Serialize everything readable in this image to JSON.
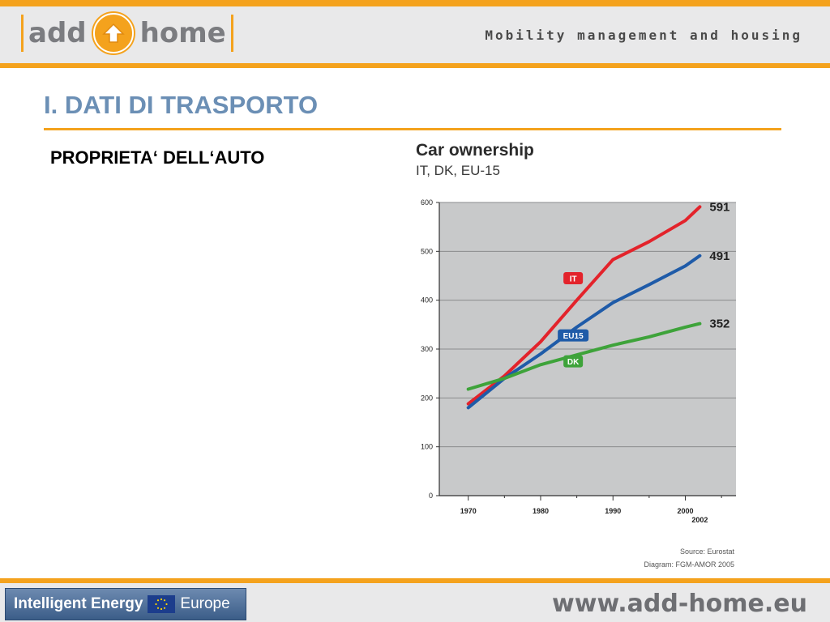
{
  "header": {
    "logo_left": "add",
    "logo_right": "home",
    "tagline": "Mobility management and housing"
  },
  "slide": {
    "title": "I. DATI DI TRASPORTO",
    "subtitle": "PROPRIETA‘ DELL‘AUTO"
  },
  "footer": {
    "program_text": "Intelligent Energy",
    "program_europe": "Europe",
    "website": "www.add-home.eu"
  },
  "colors": {
    "accent": "#f4a21d",
    "title": "#6b8fb5",
    "IT": "#e3232b",
    "EU15": "#1f5ba8",
    "DK": "#3ea33a",
    "plot_bg": "#c8c9ca"
  },
  "chart_data": {
    "type": "line",
    "title": "Car ownership",
    "subtitle": "IT, DK, EU-15",
    "xlabel": "",
    "ylabel": "",
    "xlim": [
      1966,
      2007
    ],
    "ylim": [
      0,
      600
    ],
    "x_ticks": [
      "1970",
      "1980",
      "1990",
      "2000"
    ],
    "x_extra_label": "2002",
    "y_ticks": [
      "0",
      "100",
      "200",
      "300",
      "400",
      "500",
      "600"
    ],
    "grid": true,
    "series": [
      {
        "name": "IT",
        "color": "#e3232b",
        "end_label": "591",
        "x": [
          1970,
          1975,
          1980,
          1985,
          1990,
          1995,
          2000,
          2002
        ],
        "y": [
          188,
          245,
          315,
          400,
          483,
          520,
          563,
          591
        ]
      },
      {
        "name": "EU15",
        "color": "#1f5ba8",
        "end_label": "491",
        "x": [
          1970,
          1975,
          1980,
          1985,
          1990,
          1995,
          2000,
          2002
        ],
        "y": [
          180,
          240,
          290,
          345,
          395,
          432,
          470,
          491
        ]
      },
      {
        "name": "DK",
        "color": "#3ea33a",
        "end_label": "352",
        "x": [
          1970,
          1975,
          1980,
          1985,
          1990,
          1995,
          2000,
          2002
        ],
        "y": [
          218,
          240,
          268,
          288,
          308,
          325,
          345,
          352
        ]
      }
    ],
    "series_tags": [
      {
        "name": "IT",
        "x": 1984.5,
        "y": 445
      },
      {
        "name": "EU15",
        "x": 1984.5,
        "y": 328
      },
      {
        "name": "DK",
        "x": 1984.5,
        "y": 275
      }
    ],
    "source": "Source: Eurostat",
    "credit": "Diagram: FGM-AMOR 2005"
  }
}
